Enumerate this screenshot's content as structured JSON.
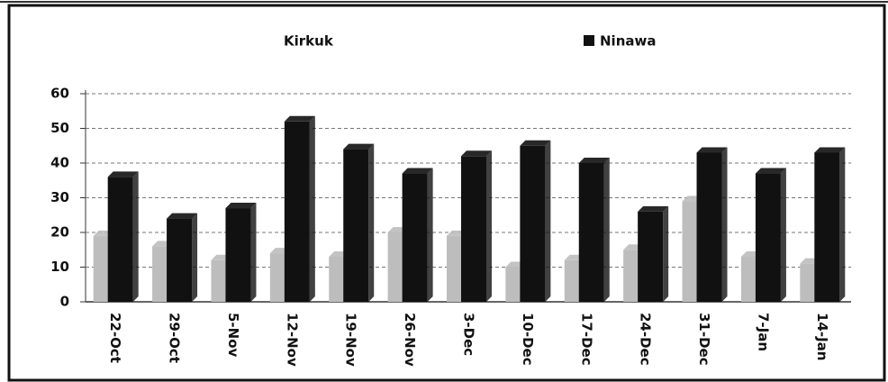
{
  "chart_data": {
    "type": "bar",
    "categories": [
      "22-Oct",
      "29-Oct",
      "5-Nov",
      "12-Nov",
      "19-Nov",
      "26-Nov",
      "3-Dec",
      "10-Dec",
      "17-Dec",
      "24-Dec",
      "31-Dec",
      "7-Jan",
      "14-Jan"
    ],
    "series": [
      {
        "name": "Kirkuk",
        "color": "#bdbdbd",
        "values": [
          19,
          16,
          12,
          14,
          13,
          20,
          19,
          10,
          12,
          15,
          29,
          13,
          11
        ]
      },
      {
        "name": "Ninawa",
        "color": "#111111",
        "values": [
          36,
          24,
          27,
          52,
          44,
          37,
          42,
          45,
          40,
          26,
          43,
          37,
          43
        ]
      }
    ],
    "ylim": [
      0,
      60
    ],
    "yticks": [
      0,
      10,
      20,
      30,
      40,
      50,
      60
    ],
    "grid": true,
    "legend": "top"
  }
}
